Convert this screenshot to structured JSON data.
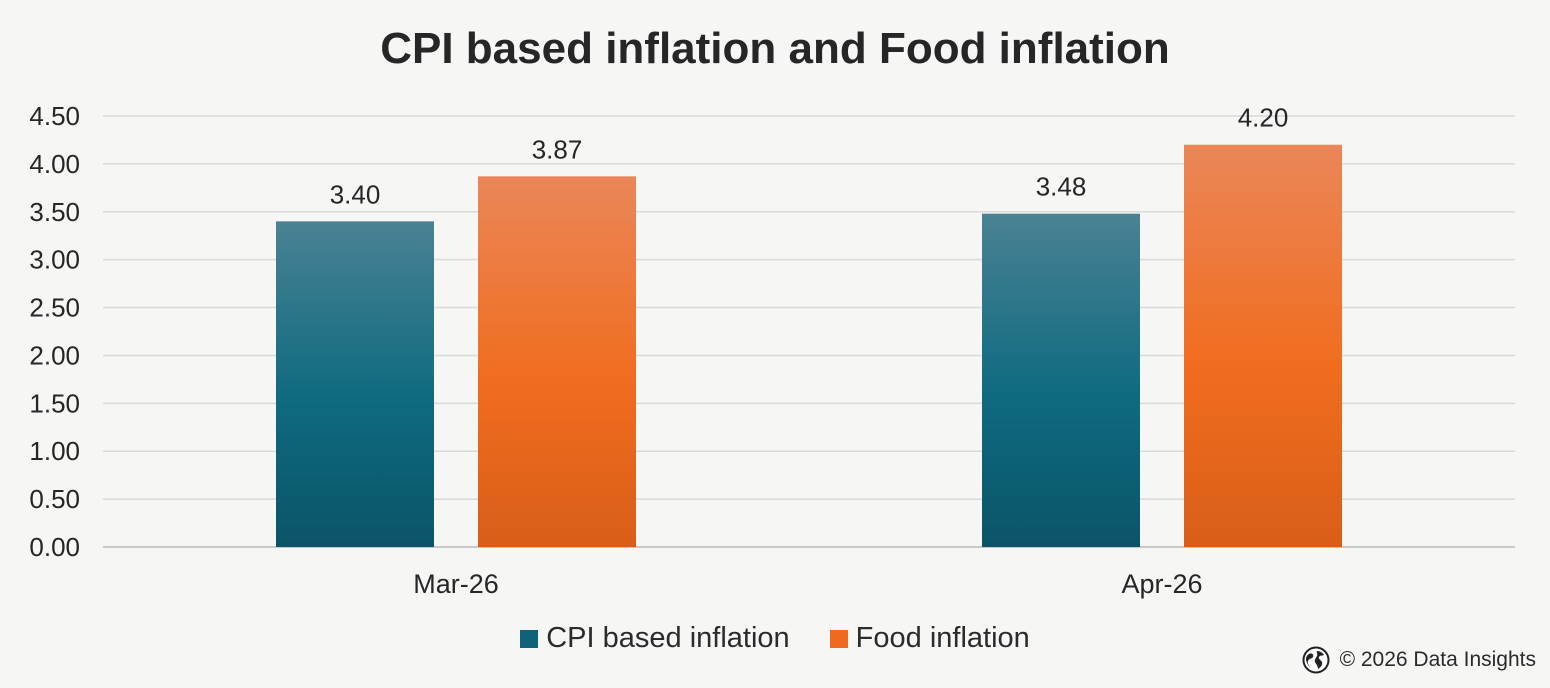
{
  "chart_data": {
    "type": "bar",
    "title": "CPI based inflation and Food inflation",
    "categories": [
      "Mar-26",
      "Apr-26"
    ],
    "series": [
      {
        "name": "CPI based inflation",
        "values": [
          3.4,
          3.48
        ],
        "labels": [
          "3.40",
          "3.48"
        ],
        "color": "#0e6378"
      },
      {
        "name": "Food inflation",
        "values": [
          3.87,
          4.2
        ],
        "labels": [
          "3.87",
          "4.20"
        ],
        "color": "#ef6a1f"
      }
    ],
    "ylim": [
      0,
      4.5
    ],
    "yticks": [
      "0.00",
      "0.50",
      "1.00",
      "1.50",
      "2.00",
      "2.50",
      "3.00",
      "3.50",
      "4.00",
      "4.50"
    ],
    "grid": true,
    "legend_position": "bottom"
  },
  "footer": {
    "icon": "globe-icon",
    "text": "© 2026 Data Insights"
  }
}
